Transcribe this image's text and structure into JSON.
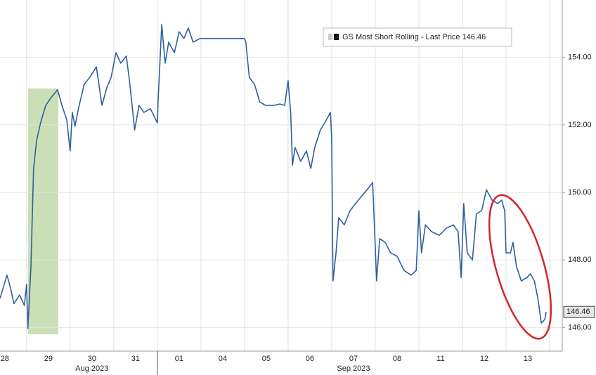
{
  "chart_data": {
    "type": "line",
    "xlim": [
      0.39,
      13.29
    ],
    "ylim": [
      145.3,
      155.7
    ],
    "yticks": [
      {
        "value": 146,
        "label": "146.00"
      },
      {
        "value": 148,
        "label": "148.00"
      },
      {
        "value": 150,
        "label": "150.00"
      },
      {
        "value": 152,
        "label": "152.00"
      },
      {
        "value": 154,
        "label": "154.00"
      }
    ],
    "xticks": [
      {
        "value": 0.5,
        "label": "28"
      },
      {
        "value": 1.5,
        "label": "29"
      },
      {
        "value": 2.5,
        "label": "30"
      },
      {
        "value": 3.5,
        "label": "31"
      },
      {
        "value": 4.5,
        "label": "01"
      },
      {
        "value": 5.5,
        "label": "04"
      },
      {
        "value": 6.5,
        "label": "05"
      },
      {
        "value": 7.5,
        "label": "06"
      },
      {
        "value": 8.5,
        "label": "07"
      },
      {
        "value": 9.5,
        "label": "08"
      },
      {
        "value": 10.5,
        "label": "11"
      },
      {
        "value": 11.5,
        "label": "12"
      },
      {
        "value": 12.5,
        "label": "13"
      }
    ],
    "x_sublabels": [
      {
        "value": 2.5,
        "label": "Aug 2023"
      },
      {
        "value": 8.5,
        "label": "Sep 2023"
      }
    ],
    "grid": true,
    "last_price": 146.46,
    "series": [
      {
        "name": "GS Most Short Rolling - Last Price 146.46",
        "color": "#2f5f9e",
        "x": [
          0.39,
          0.55,
          0.63,
          0.71,
          0.84,
          0.95,
          1.0,
          1.03,
          1.1,
          1.16,
          1.23,
          1.32,
          1.44,
          1.55,
          1.71,
          1.81,
          1.92,
          2.0,
          2.05,
          2.11,
          2.19,
          2.32,
          2.45,
          2.6,
          2.73,
          2.84,
          2.94,
          3.05,
          3.16,
          3.29,
          3.37,
          3.48,
          3.58,
          3.69,
          3.84,
          4.0,
          4.02,
          4.1,
          4.18,
          4.26,
          4.39,
          4.5,
          4.61,
          4.71,
          4.82,
          4.98,
          6.0,
          6.03,
          6.11,
          6.23,
          6.35,
          6.48,
          6.68,
          6.81,
          6.92,
          7.0,
          7.06,
          7.1,
          7.16,
          7.29,
          7.42,
          7.52,
          7.61,
          7.74,
          7.84,
          7.97,
          8.0,
          8.03,
          8.1,
          8.16,
          8.29,
          8.42,
          8.55,
          8.68,
          8.81,
          8.94,
          8.98,
          9.03,
          9.1,
          9.23,
          9.35,
          9.5,
          9.66,
          9.82,
          9.94,
          10.0,
          10.06,
          10.15,
          10.29,
          10.47,
          10.63,
          10.79,
          10.9,
          10.97,
          11.03,
          11.11,
          11.23,
          11.32,
          11.44,
          11.55,
          11.68,
          11.81,
          11.9,
          11.97,
          12.0,
          12.1,
          12.16,
          12.24,
          12.35,
          12.48,
          12.56,
          12.65,
          12.73,
          12.81,
          12.89,
          12.92
        ],
        "values": [
          146.86,
          147.55,
          147.17,
          146.71,
          146.96,
          146.65,
          147.28,
          145.97,
          147.8,
          150.71,
          151.54,
          152.06,
          152.58,
          152.79,
          153.04,
          152.58,
          152.16,
          151.23,
          152.37,
          151.96,
          152.48,
          153.2,
          153.41,
          153.72,
          152.58,
          153.1,
          153.41,
          154.14,
          153.83,
          154.04,
          153.2,
          151.85,
          152.58,
          152.37,
          152.48,
          152.06,
          152.79,
          154.97,
          153.83,
          154.45,
          154.14,
          154.76,
          154.56,
          154.87,
          154.45,
          154.56,
          154.56,
          154.45,
          153.41,
          153.2,
          152.68,
          152.58,
          152.58,
          152.62,
          152.58,
          153.31,
          152.37,
          150.81,
          151.33,
          150.92,
          151.23,
          150.71,
          151.33,
          151.85,
          152.06,
          152.37,
          151.64,
          147.38,
          148.21,
          149.25,
          149.04,
          149.46,
          149.67,
          149.88,
          150.08,
          150.29,
          149.04,
          147.38,
          148.63,
          148.52,
          148.21,
          148.11,
          147.69,
          147.55,
          147.69,
          149.46,
          148.21,
          149.04,
          148.84,
          148.73,
          148.94,
          149.04,
          148.84,
          147.48,
          149.67,
          148.21,
          148.0,
          149.36,
          149.46,
          150.08,
          149.77,
          149.67,
          149.77,
          149.46,
          148.21,
          148.21,
          148.52,
          147.8,
          147.38,
          147.48,
          147.59,
          147.38,
          146.86,
          146.13,
          146.24,
          146.46
        ]
      }
    ]
  }
}
